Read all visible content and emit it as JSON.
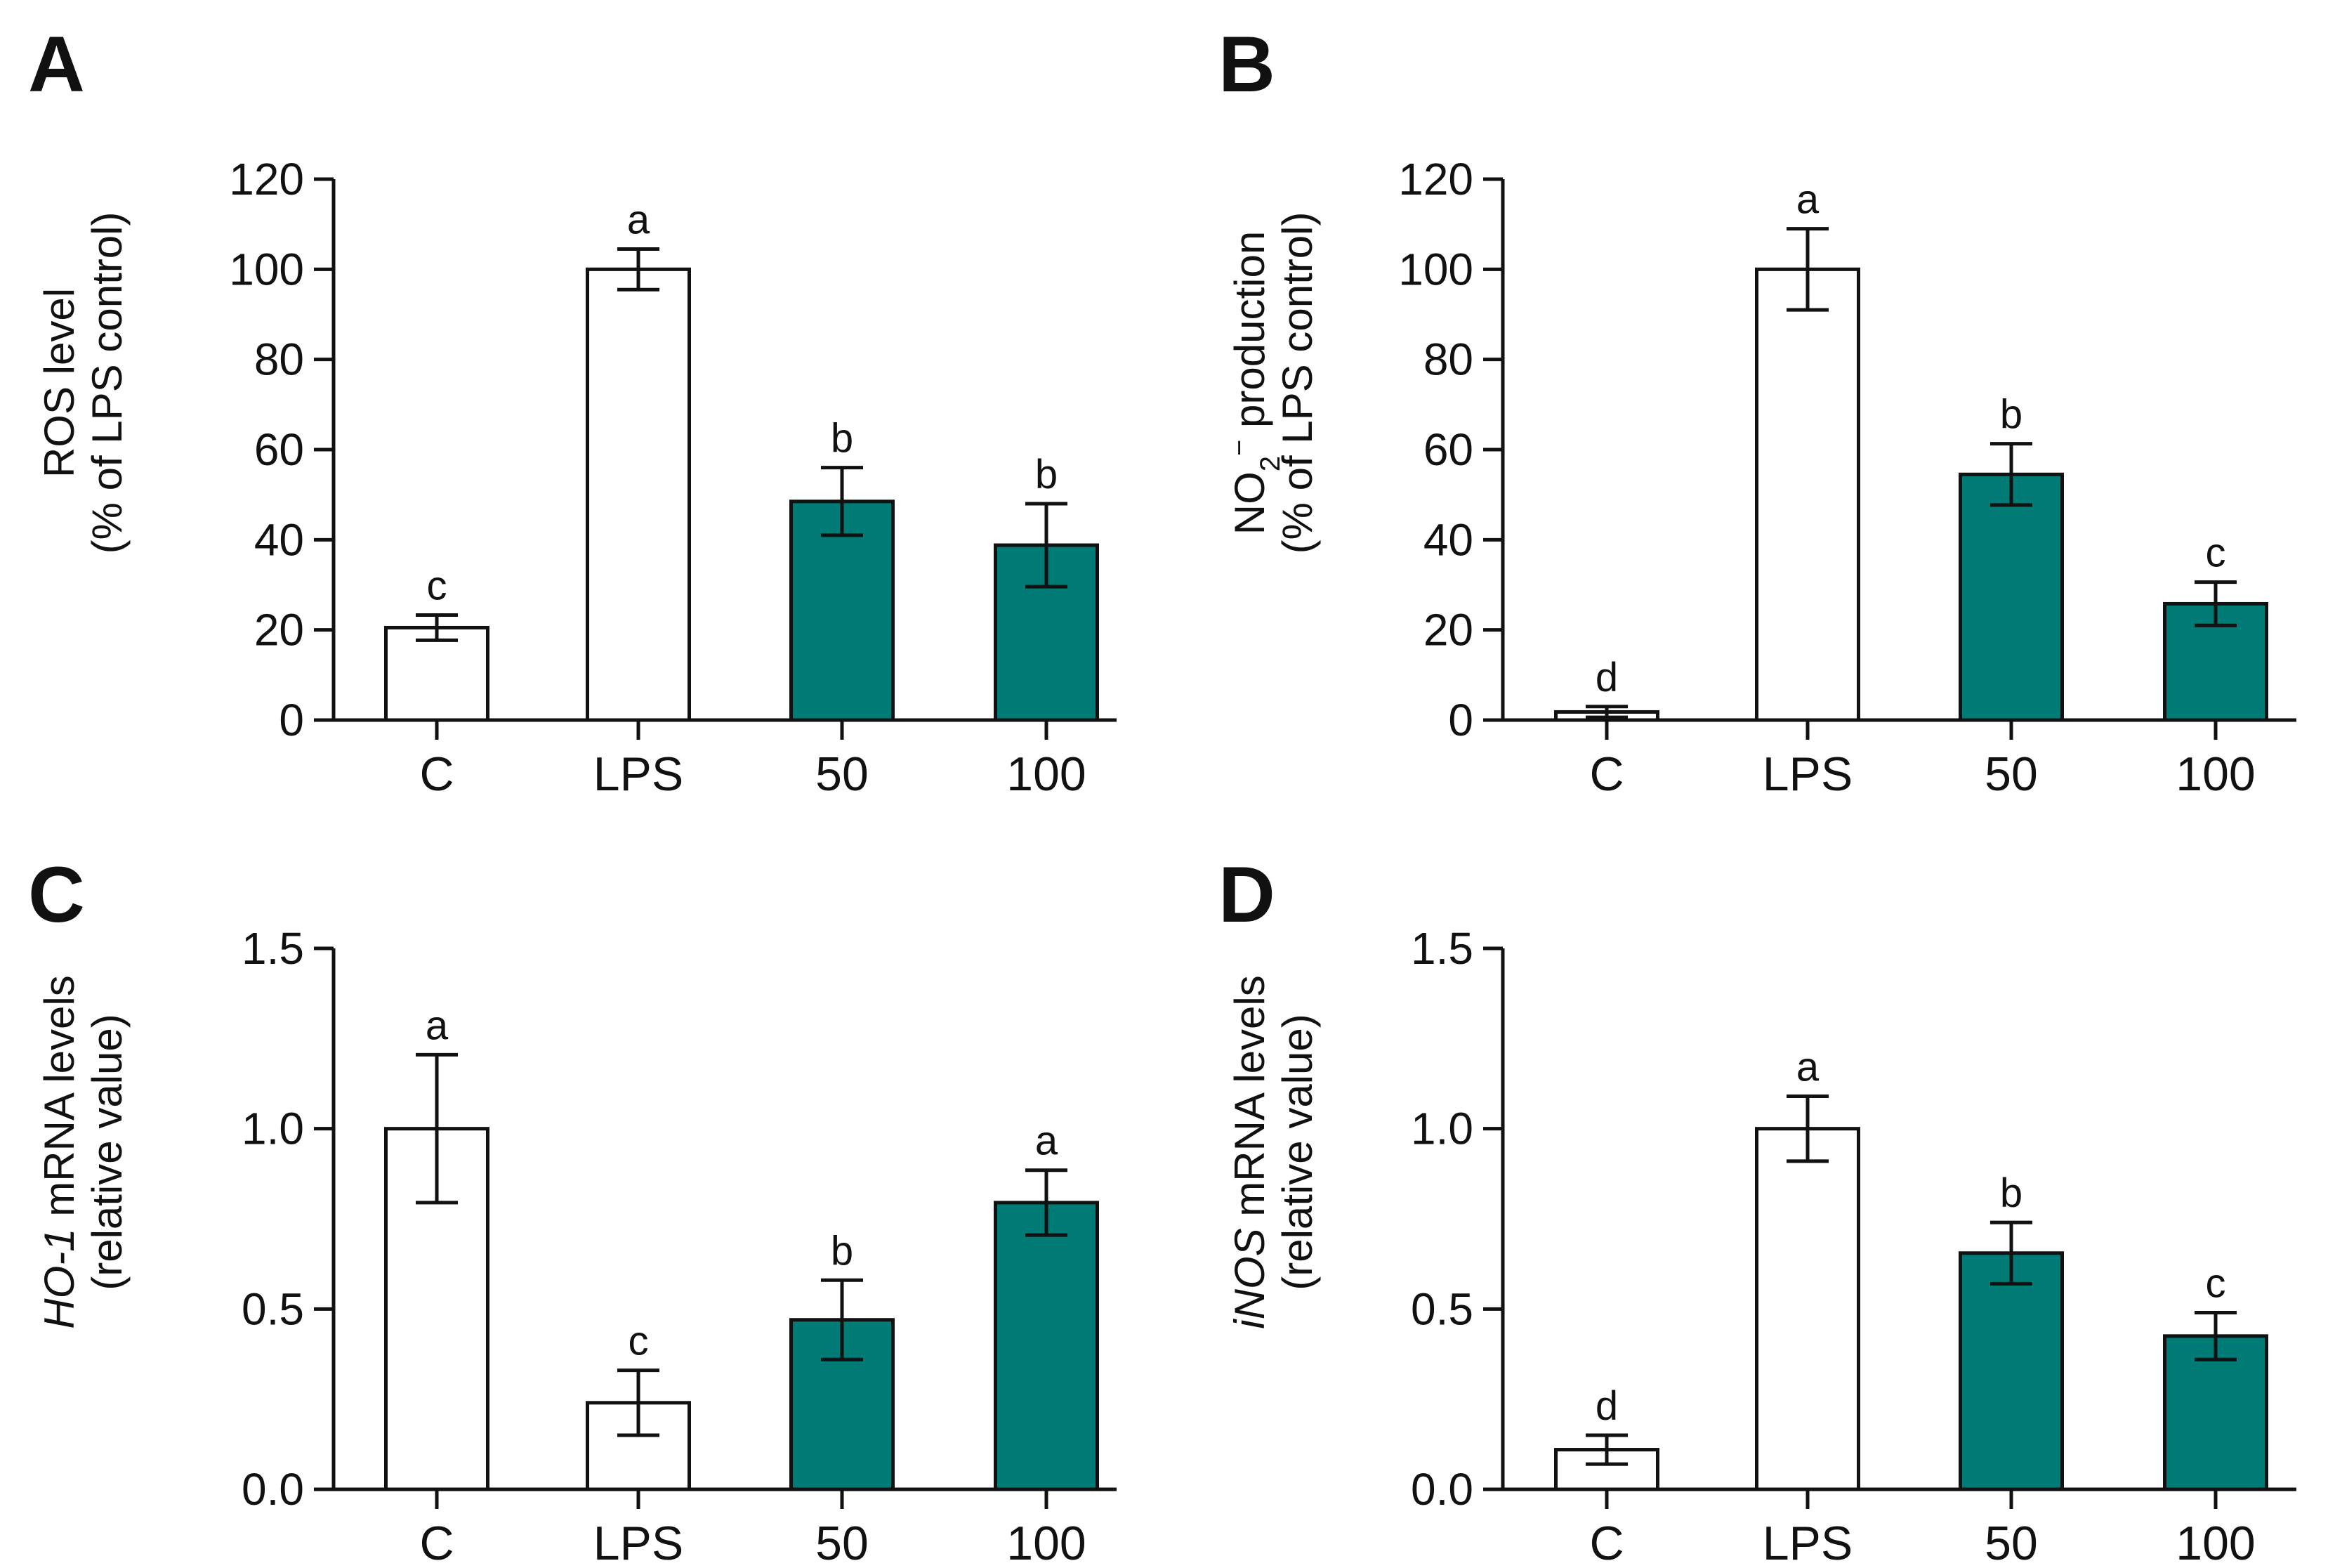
{
  "colors": {
    "control_fill": "#ffffff",
    "treatment_fill": "#007b76",
    "ink": "#111111"
  },
  "chart_data": [
    {
      "panel": "A",
      "type": "bar",
      "categories": [
        "C",
        "LPS",
        "50",
        "100"
      ],
      "values": [
        20.5,
        100,
        48.5,
        38.8
      ],
      "errors": [
        2.8,
        4.5,
        7.5,
        9.2
      ],
      "significance": [
        "c",
        "a",
        "b",
        "b"
      ],
      "fill_kind": [
        "control",
        "control",
        "treatment",
        "treatment"
      ],
      "ylabel_line1": "ROS level",
      "ylabel_line2": "(% of LPS control)",
      "ylim": [
        0,
        120
      ],
      "yticks": [
        0,
        20,
        40,
        60,
        80,
        100,
        120
      ],
      "ytick_labels": [
        "0",
        "20",
        "40",
        "60",
        "80",
        "100",
        "120"
      ]
    },
    {
      "panel": "B",
      "type": "bar",
      "categories": [
        "C",
        "LPS",
        "50",
        "100"
      ],
      "values": [
        1.8,
        100,
        54.5,
        25.8
      ],
      "errors": [
        1.2,
        9,
        6.8,
        4.8
      ],
      "significance": [
        "d",
        "a",
        "b",
        "c"
      ],
      "fill_kind": [
        "control",
        "control",
        "treatment",
        "treatment"
      ],
      "ylabel_pre": "NO",
      "ylabel_sub": "2",
      "ylabel_sup": "−",
      "ylabel_post": " production",
      "ylabel_line2": "(% of LPS control)",
      "ylim": [
        0,
        120
      ],
      "yticks": [
        0,
        20,
        40,
        60,
        80,
        100,
        120
      ],
      "ytick_labels": [
        "0",
        "20",
        "40",
        "60",
        "80",
        "100",
        "120"
      ]
    },
    {
      "panel": "C",
      "type": "bar",
      "categories": [
        "C",
        "LPS",
        "50",
        "100"
      ],
      "values": [
        1.0,
        0.24,
        0.47,
        0.795
      ],
      "errors": [
        0.205,
        0.09,
        0.11,
        0.09
      ],
      "significance": [
        "a",
        "c",
        "b",
        "a"
      ],
      "fill_kind": [
        "control",
        "control",
        "treatment",
        "treatment"
      ],
      "ylabel_italic": "HO-1",
      "ylabel_rest": " mRNA levels",
      "ylabel_line2": "(relative value)",
      "ylim": [
        0,
        1.5
      ],
      "yticks": [
        0,
        0.5,
        1.0,
        1.5
      ],
      "ytick_labels": [
        "0.0",
        "0.5",
        "1.0",
        "1.5"
      ]
    },
    {
      "panel": "D",
      "type": "bar",
      "categories": [
        "C",
        "LPS",
        "50",
        "100"
      ],
      "values": [
        0.11,
        1.0,
        0.655,
        0.425
      ],
      "errors": [
        0.04,
        0.09,
        0.085,
        0.065
      ],
      "significance": [
        "d",
        "a",
        "b",
        "c"
      ],
      "fill_kind": [
        "control",
        "control",
        "treatment",
        "treatment"
      ],
      "ylabel_italic": "iNOS",
      "ylabel_rest": " mRNA levels",
      "ylabel_line2": "(relative value)",
      "ylim": [
        0,
        1.5
      ],
      "yticks": [
        0,
        0.5,
        1.0,
        1.5
      ],
      "ytick_labels": [
        "0.0",
        "0.5",
        "1.0",
        "1.5"
      ]
    }
  ]
}
